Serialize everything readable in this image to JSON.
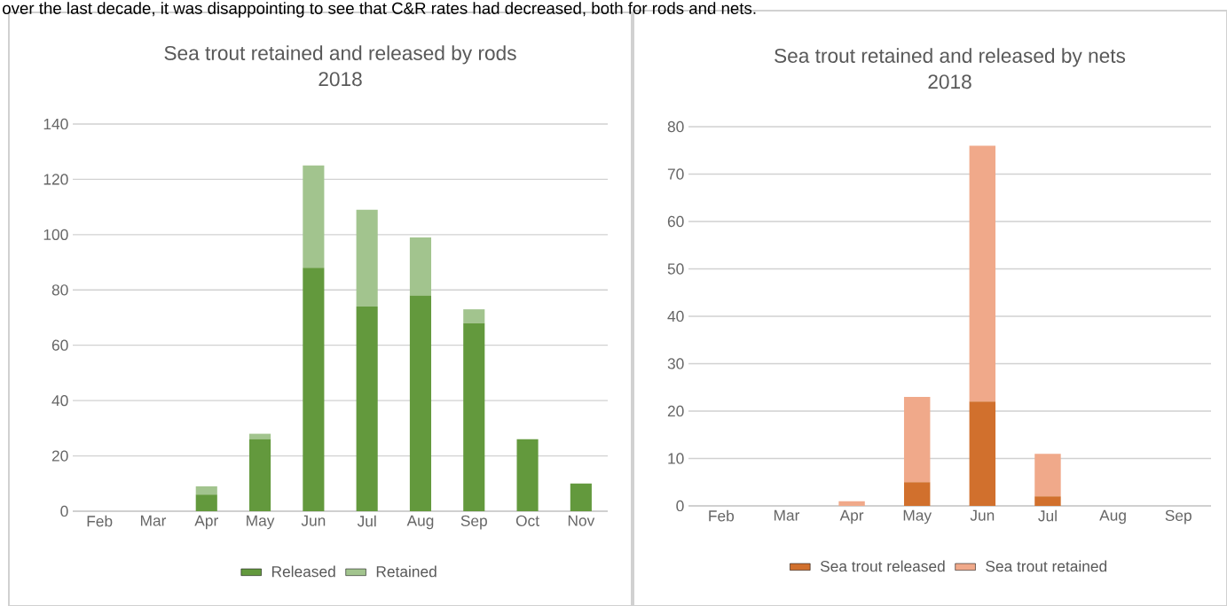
{
  "chart_data": [
    {
      "type": "bar",
      "title": "Sea trout retained and released by rods",
      "subtitle": "2018",
      "categories": [
        "Feb",
        "Mar",
        "Apr",
        "May",
        "Jun",
        "Jul",
        "Aug",
        "Sep",
        "Oct",
        "Nov"
      ],
      "series": [
        {
          "name": "Released",
          "color": "#63993d",
          "values": [
            0,
            0,
            6,
            26,
            88,
            74,
            78,
            68,
            26,
            10
          ]
        },
        {
          "name": "Retained",
          "color": "#a2c48e",
          "values": [
            0,
            0,
            3,
            2,
            37,
            35,
            21,
            5,
            0,
            0
          ]
        }
      ],
      "stacked": true,
      "ylim": [
        0,
        140
      ],
      "yticks": [
        0,
        20,
        40,
        60,
        80,
        100,
        120,
        140
      ],
      "grid": "y",
      "legend": "bottom",
      "annotations": [
        "over the last decade, it was disappointing to see that C&R rates had decreased, both for rods and nets."
      ]
    },
    {
      "type": "bar",
      "title": "Sea trout retained and released by nets",
      "subtitle": "2018",
      "categories": [
        "Feb",
        "Mar",
        "Apr",
        "May",
        "Jun",
        "Jul",
        "Aug",
        "Sep"
      ],
      "series": [
        {
          "name": "Sea trout released",
          "color": "#d1702d",
          "values": [
            0,
            0,
            0,
            5,
            22,
            2,
            0,
            0
          ]
        },
        {
          "name": "Sea trout retained",
          "color": "#f0a98a",
          "values": [
            0,
            0,
            1,
            18,
            54,
            9,
            0,
            0
          ]
        }
      ],
      "stacked": true,
      "ylim": [
        0,
        80
      ],
      "yticks": [
        0,
        10,
        20,
        30,
        40,
        50,
        60,
        70,
        80
      ],
      "grid": "y",
      "legend": "bottom"
    }
  ]
}
